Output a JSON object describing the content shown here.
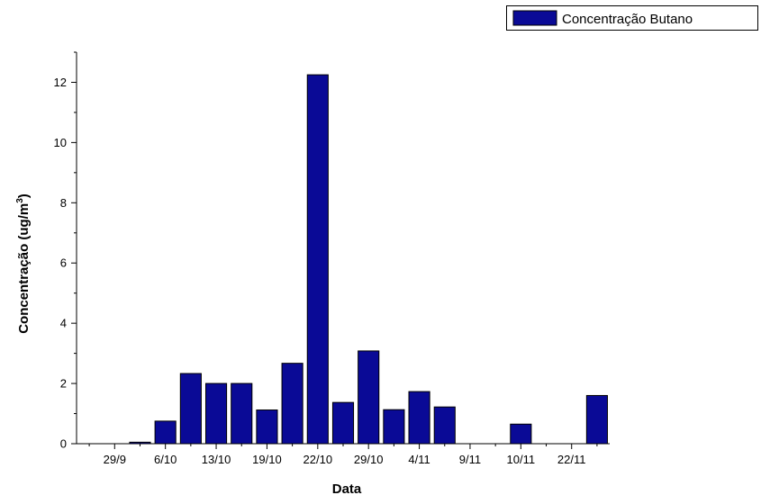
{
  "chart_data": {
    "type": "bar",
    "xlabel": "Data",
    "ylabel": "Concentração (ug/m",
    "ylabel_superscript": "3",
    "ylabel_suffix": ")",
    "ylim": [
      0,
      13
    ],
    "yticks": [
      0,
      2,
      4,
      6,
      8,
      10,
      12
    ],
    "xtick_labels": [
      "29/9",
      "6/10",
      "13/10",
      "19/10",
      "22/10",
      "29/10",
      "4/11",
      "9/11",
      "10/11",
      "22/11"
    ],
    "bar_color": "#0a0a96",
    "legend_position": "top-right",
    "series": [
      {
        "name": "Concentração Butano",
        "values": [
          0,
          0,
          0.05,
          0.75,
          2.33,
          2.0,
          2.0,
          1.12,
          2.67,
          12.25,
          1.37,
          3.08,
          1.13,
          1.73,
          1.22,
          0,
          0,
          0.65,
          0,
          0,
          1.6
        ]
      }
    ]
  }
}
